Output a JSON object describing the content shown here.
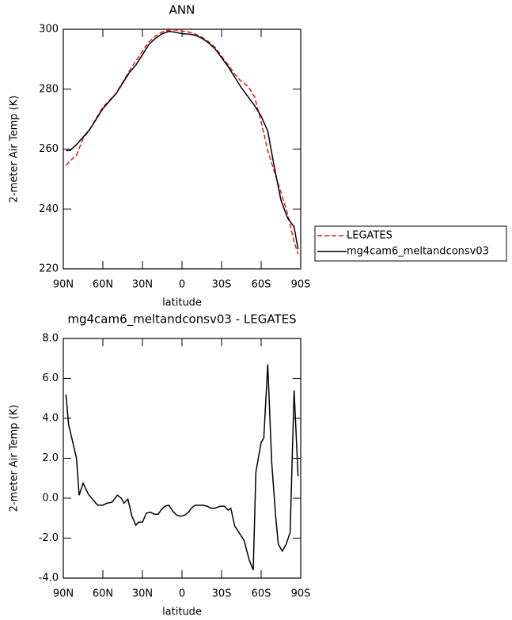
{
  "chart_data": [
    {
      "type": "line",
      "title": "ANN",
      "x_label": "latitude",
      "y_label": "2-meter Air Temp (K)",
      "x": [
        88,
        85,
        80,
        75,
        70,
        65,
        60,
        55,
        50,
        45,
        40,
        35,
        30,
        25,
        20,
        15,
        10,
        5,
        0,
        -5,
        -10,
        -15,
        -20,
        -25,
        -30,
        -35,
        -40,
        -45,
        -50,
        -55,
        -60,
        -65,
        -70,
        -75,
        -80,
        -85,
        -88
      ],
      "series": [
        {
          "name": "LEGATES",
          "color": "#e41a1c",
          "line_style": "dashed",
          "values": [
            254.5,
            256,
            258,
            263.5,
            266.5,
            270.3,
            274,
            276.3,
            278.5,
            282.3,
            286,
            289.4,
            292.7,
            295.8,
            297.8,
            299.1,
            299.7,
            299.8,
            299.4,
            299.1,
            298.4,
            297.4,
            295.9,
            294,
            291,
            288.1,
            285,
            282.5,
            281,
            277.5,
            269,
            259.5,
            252.5,
            245.5,
            238.5,
            229,
            225
          ]
        },
        {
          "name": "mg4cam6_meltandconsv03",
          "color": "#000000",
          "line_style": "solid",
          "values": [
            259.5,
            259.5,
            261.5,
            264,
            266.5,
            270,
            273.5,
            276,
            278.5,
            282,
            285.5,
            288,
            291.5,
            295,
            297,
            298.5,
            299.3,
            299,
            298.5,
            298.4,
            298,
            297,
            295.5,
            293.5,
            290.5,
            287.5,
            284,
            280.5,
            277.5,
            274.5,
            271,
            266,
            254,
            243,
            237,
            234,
            226.5
          ]
        }
      ],
      "xlim": [
        90,
        -90
      ],
      "xticks": [
        {
          "value": 90,
          "label": "90N"
        },
        {
          "value": 60,
          "label": "60N"
        },
        {
          "value": 30,
          "label": "30N"
        },
        0,
        {
          "value": -30,
          "label": "30S"
        },
        {
          "value": -60,
          "label": "60S"
        },
        {
          "value": -90,
          "label": "90S"
        }
      ],
      "ylim": [
        220,
        300
      ],
      "yticks": [
        220,
        240,
        260,
        280,
        300
      ],
      "legend": "outside-right"
    },
    {
      "type": "line",
      "title": "mg4cam6_meltandconsv03 - LEGATES",
      "x_label": "latitude",
      "y_label": "2-meter Air Temp (K)",
      "x": [
        88,
        86,
        80,
        78,
        75,
        71,
        64,
        60,
        57,
        53,
        49,
        46,
        44,
        41,
        38,
        35,
        33,
        30,
        27,
        24,
        21,
        18,
        16,
        13,
        10,
        7,
        4,
        1,
        -2,
        -5,
        -7,
        -10,
        -13,
        -16,
        -19,
        -22,
        -25,
        -29,
        -32,
        -35,
        -37,
        -40,
        -47,
        -51,
        -54,
        -56,
        -60,
        -62,
        -65,
        -68,
        -71,
        -73,
        -76,
        -79,
        -82,
        -85,
        -88
      ],
      "series": [
        {
          "name": "mg4cam6_meltandconsv03 - LEGATES",
          "color": "#000000",
          "line_style": "solid",
          "values": [
            5.2,
            3.7,
            2.0,
            0.15,
            0.75,
            0.2,
            -0.35,
            -0.35,
            -0.25,
            -0.2,
            0.15,
            0.0,
            -0.25,
            -0.05,
            -0.9,
            -1.35,
            -1.2,
            -1.2,
            -0.75,
            -0.7,
            -0.8,
            -0.8,
            -0.6,
            -0.4,
            -0.35,
            -0.65,
            -0.85,
            -0.9,
            -0.85,
            -0.7,
            -0.5,
            -0.35,
            -0.35,
            -0.35,
            -0.4,
            -0.5,
            -0.5,
            -0.4,
            -0.4,
            -0.6,
            -0.5,
            -1.4,
            -2.1,
            -3.1,
            -3.6,
            1.3,
            2.8,
            3.0,
            6.7,
            1.8,
            -0.9,
            -2.3,
            -2.65,
            -2.3,
            -1.7,
            5.4,
            1.1
          ]
        }
      ],
      "xlim": [
        90,
        -90
      ],
      "xticks": [
        {
          "value": 90,
          "label": "90N"
        },
        {
          "value": 60,
          "label": "60N"
        },
        {
          "value": 30,
          "label": "30N"
        },
        0,
        {
          "value": -30,
          "label": "30S"
        },
        {
          "value": -60,
          "label": "60S"
        },
        {
          "value": -90,
          "label": "90S"
        }
      ],
      "ylim": [
        -4,
        8
      ],
      "yticks": [
        {
          "value": -4,
          "label": "-4.0"
        },
        {
          "value": -2,
          "label": "-2.0"
        },
        {
          "value": 0,
          "label": "0.0"
        },
        {
          "value": 2,
          "label": "2.0"
        },
        {
          "value": 4,
          "label": "4.0"
        },
        {
          "value": 6,
          "label": "6.0"
        },
        {
          "value": 8,
          "label": "8.0"
        }
      ]
    }
  ]
}
